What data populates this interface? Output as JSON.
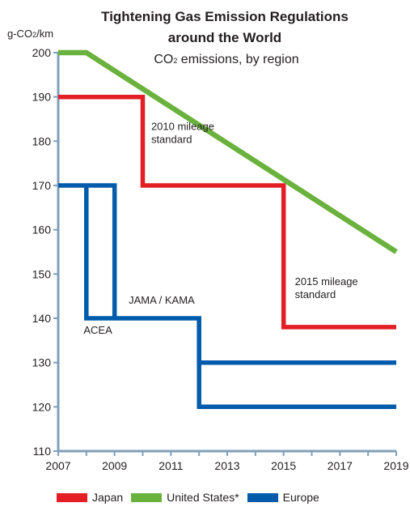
{
  "chart_data": {
    "type": "line",
    "title_line1": "Tightening Gas Emission Regulations",
    "title_line2": "around the World",
    "subtitle_main": "CO",
    "subtitle_sub": "2",
    "subtitle_rest": " emissions, by region",
    "ylabel_main": "g-CO",
    "ylabel_sub": "2",
    "ylabel_rest": "/km",
    "xlim": [
      2007,
      2019
    ],
    "ylim": [
      110,
      200
    ],
    "x_ticks": [
      "2007",
      "2009",
      "2011",
      "2013",
      "2015",
      "2017",
      "2019"
    ],
    "y_ticks": [
      "110",
      "120",
      "130",
      "140",
      "150",
      "160",
      "170",
      "180",
      "190",
      "200"
    ],
    "colors": {
      "japan": "#e31e24",
      "united_states": "#6ab23e",
      "europe": "#005bab",
      "axis": "#7f9fb8"
    },
    "series": [
      {
        "name": "Japan",
        "color": "#e31e24",
        "points": [
          [
            2007,
            190
          ],
          [
            2010,
            190
          ],
          [
            2010,
            170
          ],
          [
            2015,
            170
          ],
          [
            2015,
            138
          ],
          [
            2019,
            138
          ]
        ]
      },
      {
        "name": "United States*",
        "color": "#6ab23e",
        "points": [
          [
            2007,
            200
          ],
          [
            2008,
            200
          ],
          [
            2019,
            155
          ]
        ]
      },
      {
        "name": "Europe",
        "color": "#005bab",
        "points": [
          [
            2007,
            170
          ],
          [
            2009,
            170
          ],
          [
            2009,
            140
          ]
        ]
      },
      {
        "name": "",
        "color": "#005bab",
        "points": [
          [
            2008,
            170
          ],
          [
            2008,
            140
          ],
          [
            2012,
            140
          ],
          [
            2012,
            130
          ],
          [
            2019,
            130
          ]
        ]
      },
      {
        "name": "",
        "color": "#005bab",
        "points": [
          [
            2012,
            140
          ],
          [
            2012,
            120
          ],
          [
            2019,
            120
          ]
        ]
      }
    ],
    "annotations": [
      {
        "lines": [
          "2010 mileage",
          "standard"
        ],
        "x": 2010.3,
        "y": 182.5
      },
      {
        "lines": [
          "2015 mileage",
          "standard"
        ],
        "x": 2015.4,
        "y": 147.5
      },
      {
        "lines": [
          "JAMA / KAMA"
        ],
        "x": 2009.5,
        "y": 143.3
      },
      {
        "lines": [
          "ACEA"
        ],
        "x": 2007.9,
        "y": 136.5
      }
    ]
  }
}
